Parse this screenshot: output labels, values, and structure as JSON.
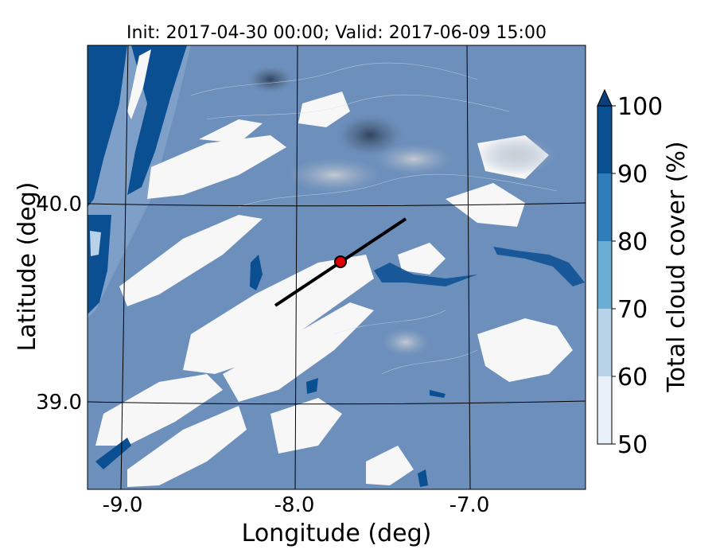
{
  "title": "Init: 2017-04-30 00:00; Valid: 2017-06-09 15:00",
  "map": {
    "xlabel": "Longitude (deg)",
    "ylabel": "Latitude (deg)",
    "x_ticks": [
      "-9.0",
      "-8.0",
      "-7.0"
    ],
    "y_ticks": [
      "40.0",
      "39.0"
    ],
    "lon_range": [
      -9.2,
      -6.35
    ],
    "lat_range": [
      38.55,
      40.8
    ],
    "transect": {
      "start": [
        -8.12,
        39.47
      ],
      "end": [
        -7.37,
        39.93
      ]
    },
    "point": {
      "lon": -7.77,
      "lat": 39.69,
      "color": "#e00000"
    }
  },
  "colorbar": {
    "label": "Total cloud cover (%)",
    "ticks": [
      "50",
      "60",
      "70",
      "80",
      "90",
      "100"
    ],
    "levels": [
      50,
      60,
      70,
      80,
      90,
      100
    ],
    "colors": [
      "#e8f0f9",
      "#b8d3e9",
      "#6aaed6",
      "#2f7dbb",
      "#0a4f92"
    ],
    "extend": "max"
  },
  "colors": {
    "base_cloud": "#6c8fbb",
    "clear": "#f7f7f7",
    "dense": "#0a4f92"
  }
}
